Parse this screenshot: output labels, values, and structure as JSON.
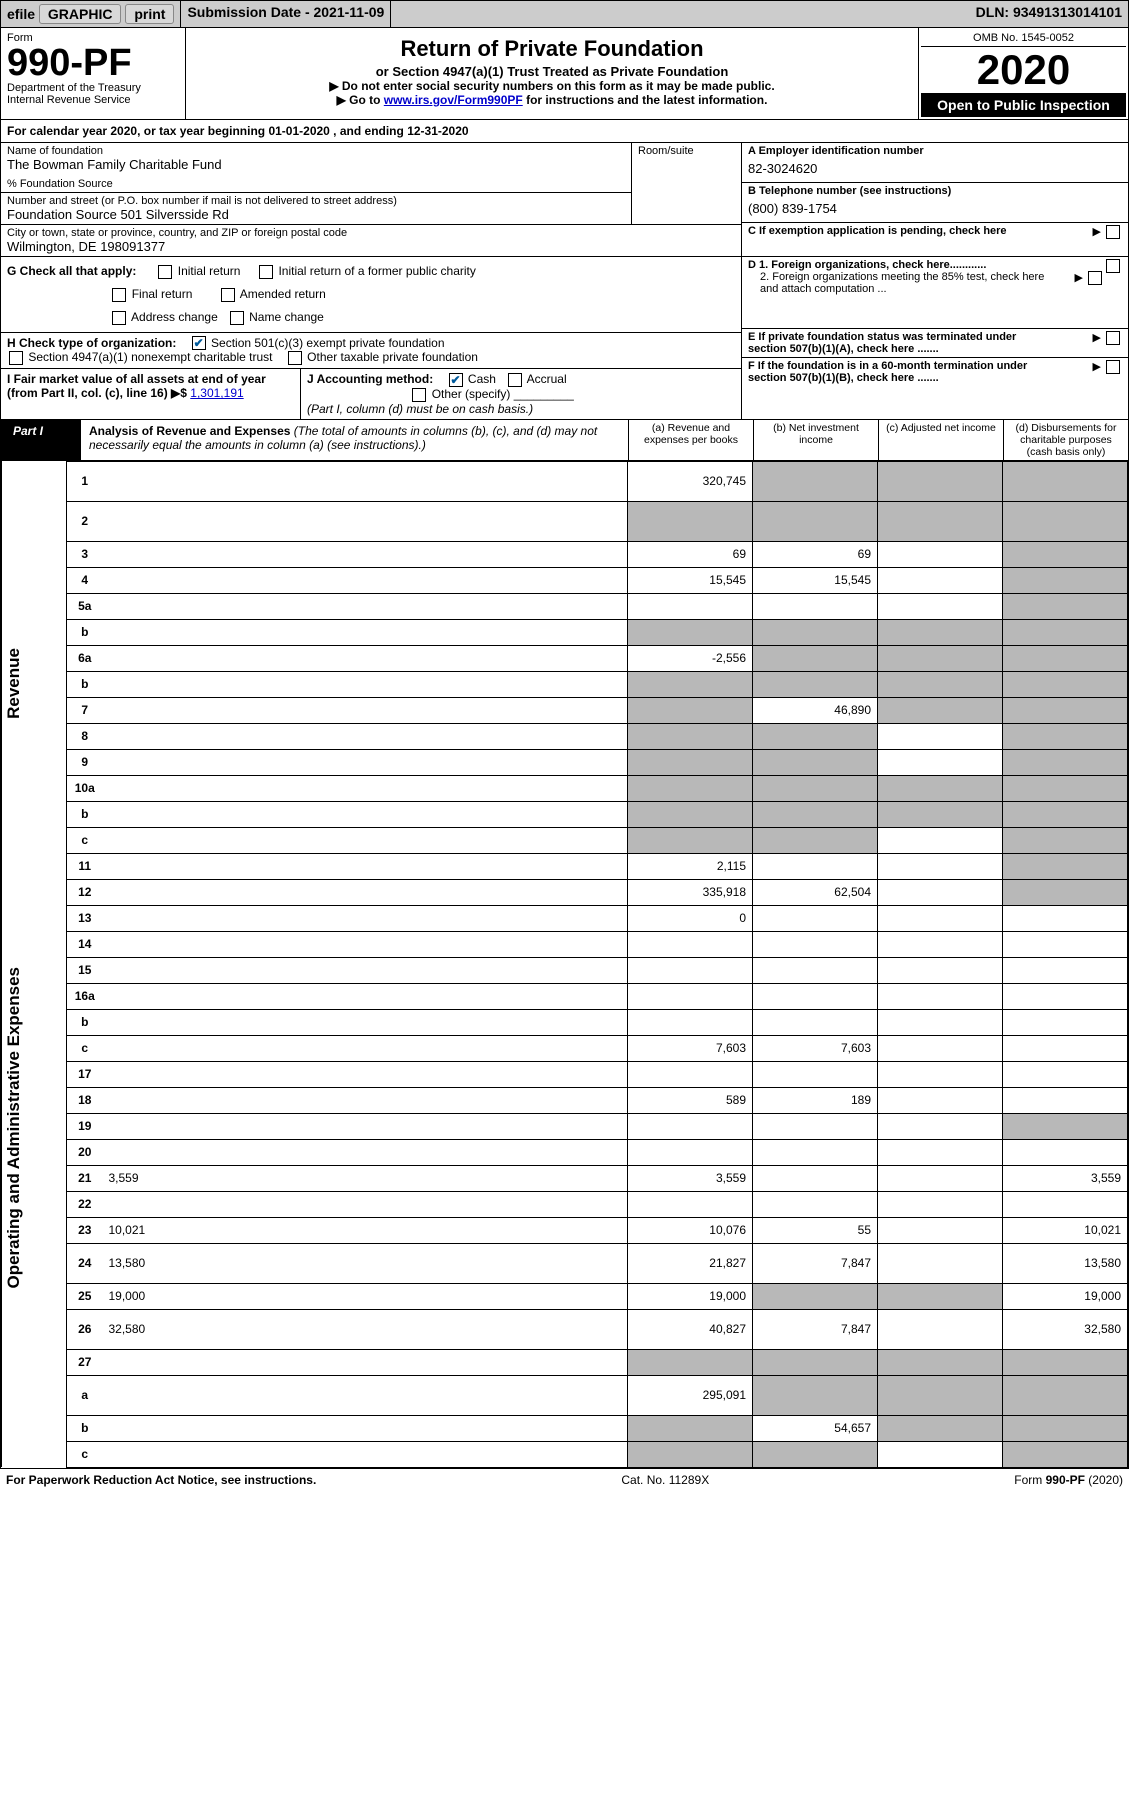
{
  "topbar": {
    "efile": "efile",
    "graphic": "GRAPHIC",
    "print_btn": "print",
    "submission_label": "Submission Date - 2021-11-09",
    "dln": "DLN: 93491313014101"
  },
  "header": {
    "form_label": "Form",
    "form_no": "990-PF",
    "dept1": "Department of the Treasury",
    "dept2": "Internal Revenue Service",
    "title": "Return of Private Foundation",
    "subtitle": "or Section 4947(a)(1) Trust Treated as Private Foundation",
    "note1": "▶ Do not enter social security numbers on this form as it may be made public.",
    "note2_pre": "▶ Go to ",
    "note2_link": "www.irs.gov/Form990PF",
    "note2_post": " for instructions and the latest information.",
    "omb": "OMB No. 1545-0052",
    "year": "2020",
    "open_public": "Open to Public Inspection"
  },
  "calendar": {
    "text_pre": "For calendar year 2020, or tax year beginning ",
    "begin": "01-01-2020",
    "text_mid": " , and ending ",
    "end": "12-31-2020"
  },
  "info": {
    "name_label": "Name of foundation",
    "name": "The Bowman Family Charitable Fund",
    "pct_fs": "% Foundation Source",
    "addr_label": "Number and street (or P.O. box number if mail is not delivered to street address)",
    "addr": "Foundation Source 501 Silversside Rd",
    "room_label": "Room/suite",
    "city_label": "City or town, state or province, country, and ZIP or foreign postal code",
    "city": "Wilmington, DE  198091377",
    "ein_label": "A Employer identification number",
    "ein": "82-3024620",
    "phone_label": "B Telephone number (see instructions)",
    "phone": "(800) 839-1754",
    "c_label": "C If exemption application is pending, check here",
    "d1": "D 1. Foreign organizations, check here............",
    "d2": "2. Foreign organizations meeting the 85% test, check here and attach computation ...",
    "e_label": "E  If private foundation status was terminated under section 507(b)(1)(A), check here .......",
    "f_label": "F  If the foundation is in a 60-month termination under section 507(b)(1)(B), check here ......."
  },
  "g": {
    "label": "G Check all that apply:",
    "initial": "Initial return",
    "initial_former": "Initial return of a former public charity",
    "final": "Final return",
    "amended": "Amended return",
    "addr_change": "Address change",
    "name_change": "Name change"
  },
  "h": {
    "label": "H Check type of organization:",
    "o501c3": "Section 501(c)(3) exempt private foundation",
    "o4947": "Section 4947(a)(1) nonexempt charitable trust",
    "other_tax": "Other taxable private foundation"
  },
  "i": {
    "label": "I Fair market value of all assets at end of year (from Part II, col. (c), line 16)  ▶$",
    "value": "1,301,191"
  },
  "j": {
    "label": "J Accounting method:",
    "cash": "Cash",
    "accrual": "Accrual",
    "other": "Other (specify)",
    "note": "(Part I, column (d) must be on cash basis.)"
  },
  "part1": {
    "label": "Part I",
    "title": "Analysis of Revenue and Expenses",
    "title_note": " (The total of amounts in columns (b), (c), and (d) may not necessarily equal the amounts in column (a) (see instructions).)",
    "col_a": "(a)   Revenue and expenses per books",
    "col_b": "(b)   Net investment income",
    "col_c": "(c)   Adjusted net income",
    "col_d": "(d)   Disbursements for charitable purposes (cash basis only)"
  },
  "sides": {
    "revenue": "Revenue",
    "expenses": "Operating and Administrative Expenses"
  },
  "rows": [
    {
      "n": "1",
      "d": "",
      "a": "320,745",
      "b": "",
      "c": "",
      "bs": true,
      "cs": true,
      "ds": true,
      "tall": true
    },
    {
      "n": "2",
      "d": "",
      "a": "",
      "b": "",
      "c": "",
      "as": true,
      "bs": true,
      "cs": true,
      "ds": true,
      "tall": true
    },
    {
      "n": "3",
      "d": "",
      "a": "69",
      "b": "69",
      "c": "",
      "cs": false,
      "ds": true
    },
    {
      "n": "4",
      "d": "",
      "a": "15,545",
      "b": "15,545",
      "c": "",
      "ds": true
    },
    {
      "n": "5a",
      "d": "",
      "a": "",
      "b": "",
      "c": "",
      "ds": true
    },
    {
      "n": "b",
      "d": "",
      "a": "",
      "b": "",
      "c": "",
      "as": true,
      "bs": true,
      "cs": true,
      "ds": true
    },
    {
      "n": "6a",
      "d": "",
      "a": "-2,556",
      "b": "",
      "c": "",
      "bs": true,
      "cs": true,
      "ds": true
    },
    {
      "n": "b",
      "d": "",
      "a": "",
      "b": "",
      "c": "",
      "as": true,
      "bs": true,
      "cs": true,
      "ds": true
    },
    {
      "n": "7",
      "d": "",
      "a": "",
      "b": "46,890",
      "c": "",
      "as": true,
      "cs": true,
      "ds": true
    },
    {
      "n": "8",
      "d": "",
      "a": "",
      "b": "",
      "c": "",
      "as": true,
      "bs": true,
      "ds": true
    },
    {
      "n": "9",
      "d": "",
      "a": "",
      "b": "",
      "c": "",
      "as": true,
      "bs": true,
      "ds": true
    },
    {
      "n": "10a",
      "d": "",
      "a": "",
      "b": "",
      "c": "",
      "as": true,
      "bs": true,
      "cs": true,
      "ds": true
    },
    {
      "n": "b",
      "d": "",
      "a": "",
      "b": "",
      "c": "",
      "as": true,
      "bs": true,
      "cs": true,
      "ds": true
    },
    {
      "n": "c",
      "d": "",
      "a": "",
      "b": "",
      "c": "",
      "as": true,
      "bs": true,
      "ds": true
    },
    {
      "n": "11",
      "d": "",
      "a": "2,115",
      "b": "",
      "c": "",
      "ds": true
    },
    {
      "n": "12",
      "d": "",
      "a": "335,918",
      "b": "62,504",
      "c": "",
      "ds": true
    }
  ],
  "exp_rows": [
    {
      "n": "13",
      "d": "",
      "a": "0",
      "b": "",
      "c": ""
    },
    {
      "n": "14",
      "d": "",
      "a": "",
      "b": "",
      "c": ""
    },
    {
      "n": "15",
      "d": "",
      "a": "",
      "b": "",
      "c": ""
    },
    {
      "n": "16a",
      "d": "",
      "a": "",
      "b": "",
      "c": ""
    },
    {
      "n": "b",
      "d": "",
      "a": "",
      "b": "",
      "c": ""
    },
    {
      "n": "c",
      "d": "",
      "a": "7,603",
      "b": "7,603",
      "c": ""
    },
    {
      "n": "17",
      "d": "",
      "a": "",
      "b": "",
      "c": ""
    },
    {
      "n": "18",
      "d": "",
      "a": "589",
      "b": "189",
      "c": ""
    },
    {
      "n": "19",
      "d": "",
      "a": "",
      "b": "",
      "c": "",
      "ds": true
    },
    {
      "n": "20",
      "d": "",
      "a": "",
      "b": "",
      "c": ""
    },
    {
      "n": "21",
      "d": "3,559",
      "a": "3,559",
      "b": "",
      "c": ""
    },
    {
      "n": "22",
      "d": "",
      "a": "",
      "b": "",
      "c": ""
    },
    {
      "n": "23",
      "d": "10,021",
      "a": "10,076",
      "b": "55",
      "c": ""
    },
    {
      "n": "24",
      "d": "13,580",
      "a": "21,827",
      "b": "7,847",
      "c": "",
      "tall": true
    },
    {
      "n": "25",
      "d": "19,000",
      "a": "19,000",
      "b": "",
      "c": "",
      "bs": true,
      "cs": true
    },
    {
      "n": "26",
      "d": "32,580",
      "a": "40,827",
      "b": "7,847",
      "c": "",
      "tall": true
    }
  ],
  "bottom_rows": [
    {
      "n": "27",
      "d": "",
      "a": "",
      "b": "",
      "c": "",
      "as": true,
      "bs": true,
      "cs": true,
      "ds": true
    },
    {
      "n": "a",
      "d": "",
      "a": "295,091",
      "b": "",
      "c": "",
      "bs": true,
      "cs": true,
      "ds": true,
      "tall": true
    },
    {
      "n": "b",
      "d": "",
      "a": "",
      "b": "54,657",
      "c": "",
      "as": true,
      "cs": true,
      "ds": true
    },
    {
      "n": "c",
      "d": "",
      "a": "",
      "b": "",
      "c": "",
      "as": true,
      "bs": true,
      "ds": true
    }
  ],
  "footer": {
    "left": "For Paperwork Reduction Act Notice, see instructions.",
    "mid": "Cat. No. 11289X",
    "right": "Form 990-PF (2020)"
  }
}
